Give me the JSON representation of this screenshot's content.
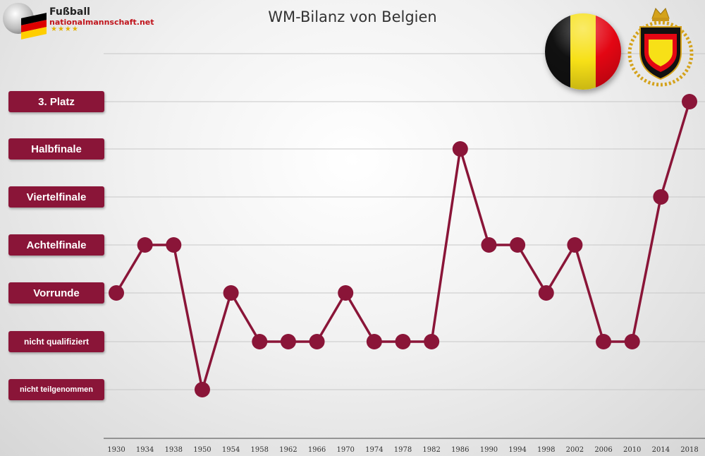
{
  "header": {
    "title": "WM-Bilanz von Belgien"
  },
  "logo": {
    "brand": "Fußball",
    "site": "nationalmannschaft.net",
    "stars": "★★★★"
  },
  "colors": {
    "line": "#8a1538",
    "label_bg": "#8a1538",
    "grid": "#c8c8c8",
    "belgium_black": "#111111",
    "belgium_yellow": "#f7e017",
    "belgium_red": "#e30613"
  },
  "chart_data": {
    "type": "line",
    "title": "WM-Bilanz von Belgien",
    "categories": [
      "1930",
      "1934",
      "1938",
      "1950",
      "1954",
      "1958",
      "1962",
      "1966",
      "1970",
      "1974",
      "1978",
      "1982",
      "1986",
      "1990",
      "1994",
      "1998",
      "2002",
      "2006",
      "2010",
      "2014",
      "2018"
    ],
    "levels": [
      "nicht teilgenommen",
      "nicht qualifiziert",
      "Vorrunde",
      "Achtelfinale",
      "Viertelfinale",
      "Halbfinale",
      "3. Platz"
    ],
    "series": [
      {
        "values": [
          "Vorrunde",
          "Achtelfinale",
          "Achtelfinale",
          "nicht teilgenommen",
          "Vorrunde",
          "nicht qualifiziert",
          "nicht qualifiziert",
          "nicht qualifiziert",
          "Vorrunde",
          "nicht qualifiziert",
          "nicht qualifiziert",
          "nicht qualifiziert",
          "Halbfinale",
          "Achtelfinale",
          "Achtelfinale",
          "Vorrunde",
          "Achtelfinale",
          "nicht qualifiziert",
          "nicht qualifiziert",
          "Viertelfinale",
          "3. Platz"
        ]
      }
    ],
    "grid": true
  }
}
